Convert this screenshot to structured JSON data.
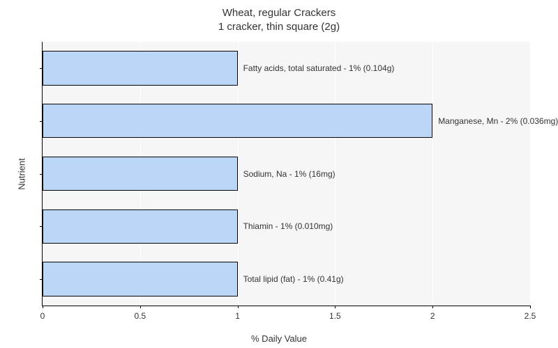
{
  "chart": {
    "type": "bar-horizontal",
    "title_line1": "Wheat, regular Crackers",
    "title_line2": "1 cracker, thin square (2g)",
    "title_fontsize": 15,
    "xlabel": "% Daily Value",
    "ylabel": "Nutrient",
    "label_fontsize": 13,
    "background_color": "#ffffff",
    "plot_background_color": "#f6f6f6",
    "grid_color": "#ffffff",
    "axis_color": "#000000",
    "tick_fontsize": 12,
    "bar_color": "#bcd6f7",
    "bar_border_color": "#000000",
    "xlim": [
      0,
      2.5
    ],
    "xticks": [
      0,
      0.5,
      1,
      1.5,
      2,
      2.5
    ],
    "xtick_labels": [
      "0",
      "0.5",
      "1",
      "1.5",
      "2",
      "2.5"
    ],
    "bar_relative_height": 0.65,
    "bars": [
      {
        "label": "Fatty acids, total saturated - 1% (0.104g)",
        "value": 1
      },
      {
        "label": "Manganese, Mn - 2% (0.036mg)",
        "value": 2
      },
      {
        "label": "Sodium, Na - 1% (16mg)",
        "value": 1
      },
      {
        "label": "Thiamin - 1% (0.010mg)",
        "value": 1
      },
      {
        "label": "Total lipid (fat) - 1% (0.41g)",
        "value": 1
      }
    ]
  }
}
